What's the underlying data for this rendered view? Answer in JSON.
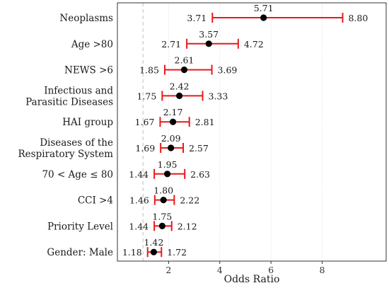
{
  "chart_data": {
    "type": "forest",
    "xlabel": "Odds Ratio",
    "xlim": [
      0,
      10.5
    ],
    "xticks": [
      2,
      4,
      6,
      8
    ],
    "reference_line": 1,
    "grid": "vertical-dotted",
    "colors": {
      "ci": "#e8191b",
      "point": "#000000",
      "reference": "#c8c8c8",
      "grid": "#d4d4d4"
    },
    "rows": [
      {
        "label": [
          "Neoplasms"
        ],
        "or": 5.71,
        "lower": 3.71,
        "upper": 8.8,
        "or_text": "5.71",
        "lower_text": "3.71",
        "upper_text": "8.80"
      },
      {
        "label": [
          "Age >80"
        ],
        "or": 3.57,
        "lower": 2.71,
        "upper": 4.72,
        "or_text": "3.57",
        "lower_text": "2.71",
        "upper_text": "4.72"
      },
      {
        "label": [
          "NEWS >6"
        ],
        "or": 2.61,
        "lower": 1.85,
        "upper": 3.69,
        "or_text": "2.61",
        "lower_text": "1.85",
        "upper_text": "3.69"
      },
      {
        "label": [
          "Infectious and",
          "Parasitic Diseases"
        ],
        "or": 2.42,
        "lower": 1.75,
        "upper": 3.33,
        "or_text": "2.42",
        "lower_text": "1.75",
        "upper_text": "3.33"
      },
      {
        "label": [
          "HAI group"
        ],
        "or": 2.17,
        "lower": 1.67,
        "upper": 2.81,
        "or_text": "2.17",
        "lower_text": "1.67",
        "upper_text": "2.81"
      },
      {
        "label": [
          "Diseases of the",
          "Respiratory System"
        ],
        "or": 2.09,
        "lower": 1.69,
        "upper": 2.57,
        "or_text": "2.09",
        "lower_text": "1.69",
        "upper_text": "2.57"
      },
      {
        "label": [
          "70 < Age ≤ 80"
        ],
        "or": 1.95,
        "lower": 1.44,
        "upper": 2.63,
        "or_text": "1.95",
        "lower_text": "1.44",
        "upper_text": "2.63"
      },
      {
        "label": [
          "CCI >4"
        ],
        "or": 1.8,
        "lower": 1.46,
        "upper": 2.22,
        "or_text": "1.80",
        "lower_text": "1.46",
        "upper_text": "2.22"
      },
      {
        "label": [
          "Priority Level"
        ],
        "or": 1.75,
        "lower": 1.44,
        "upper": 2.12,
        "or_text": "1.75",
        "lower_text": "1.44",
        "upper_text": "2.12"
      },
      {
        "label": [
          "Gender: Male"
        ],
        "or": 1.42,
        "lower": 1.18,
        "upper": 1.72,
        "or_text": "1.42",
        "lower_text": "1.18",
        "upper_text": "1.72"
      }
    ]
  }
}
